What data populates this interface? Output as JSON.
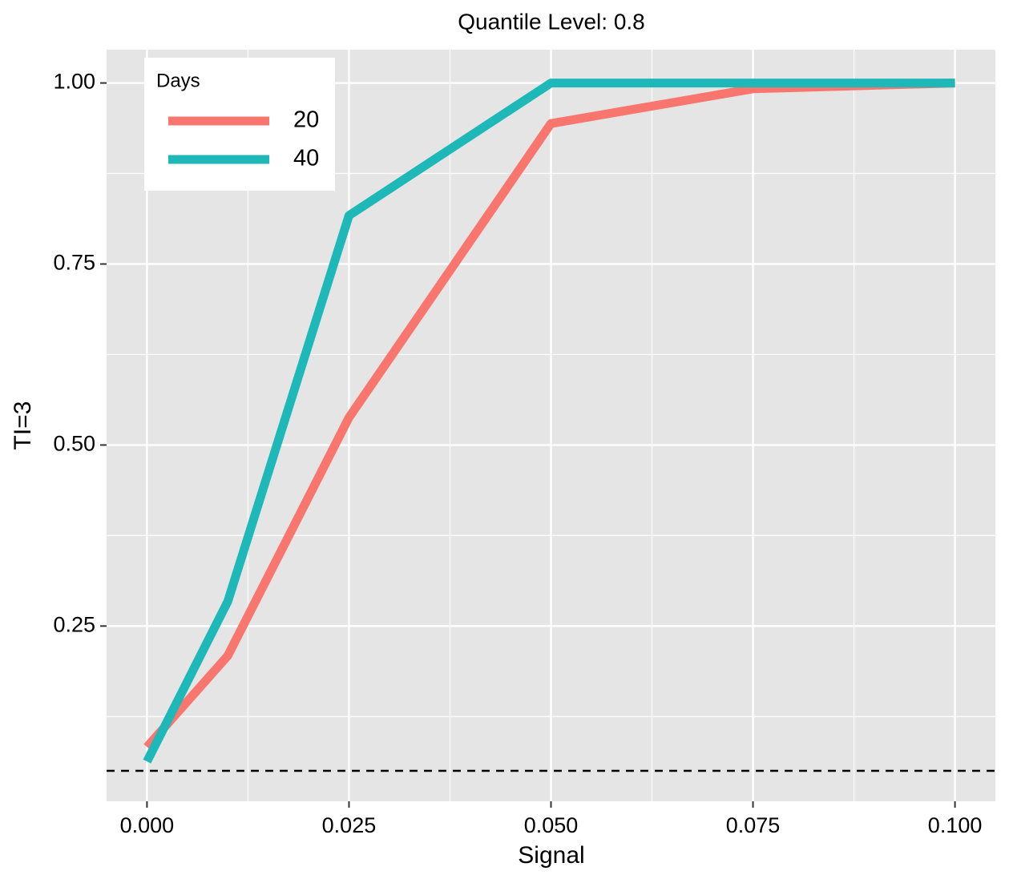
{
  "chart_data": {
    "type": "line",
    "title": "Quantile Level: 0.8",
    "x_label": "Signal",
    "y_label": "TI=3",
    "x": [
      0,
      0.01,
      0.025,
      0.05,
      0.075,
      0.1
    ],
    "series": [
      {
        "name": "20",
        "color": "#f8766d",
        "values": [
          0.083,
          0.209,
          0.538,
          0.944,
          0.992,
          1.0
        ]
      },
      {
        "name": "40",
        "color": "#1fb8b8",
        "values": [
          0.063,
          0.284,
          0.817,
          1.0,
          1.0,
          1.0
        ]
      }
    ],
    "legend_title": "Days",
    "legend": "top-left",
    "xlim": [
      -0.005,
      0.105
    ],
    "ylim": [
      0.008,
      1.046
    ],
    "xticks": [
      {
        "value": 0,
        "label": "0.000"
      },
      0.025,
      {
        "value": 0.05,
        "label": "0.050"
      },
      0.075,
      {
        "value": 0.1,
        "label": "0.100"
      }
    ],
    "yticks": [
      0.25,
      {
        "value": 0.5,
        "label": "0.50"
      },
      0.75,
      {
        "value": 1,
        "label": "1.00"
      }
    ],
    "xminor": [
      0.0125,
      0.0375,
      0.0625,
      0.0875
    ],
    "yminor": [
      0.125,
      0.375,
      0.625,
      0.875
    ],
    "hline": 0.05,
    "grid": true
  }
}
